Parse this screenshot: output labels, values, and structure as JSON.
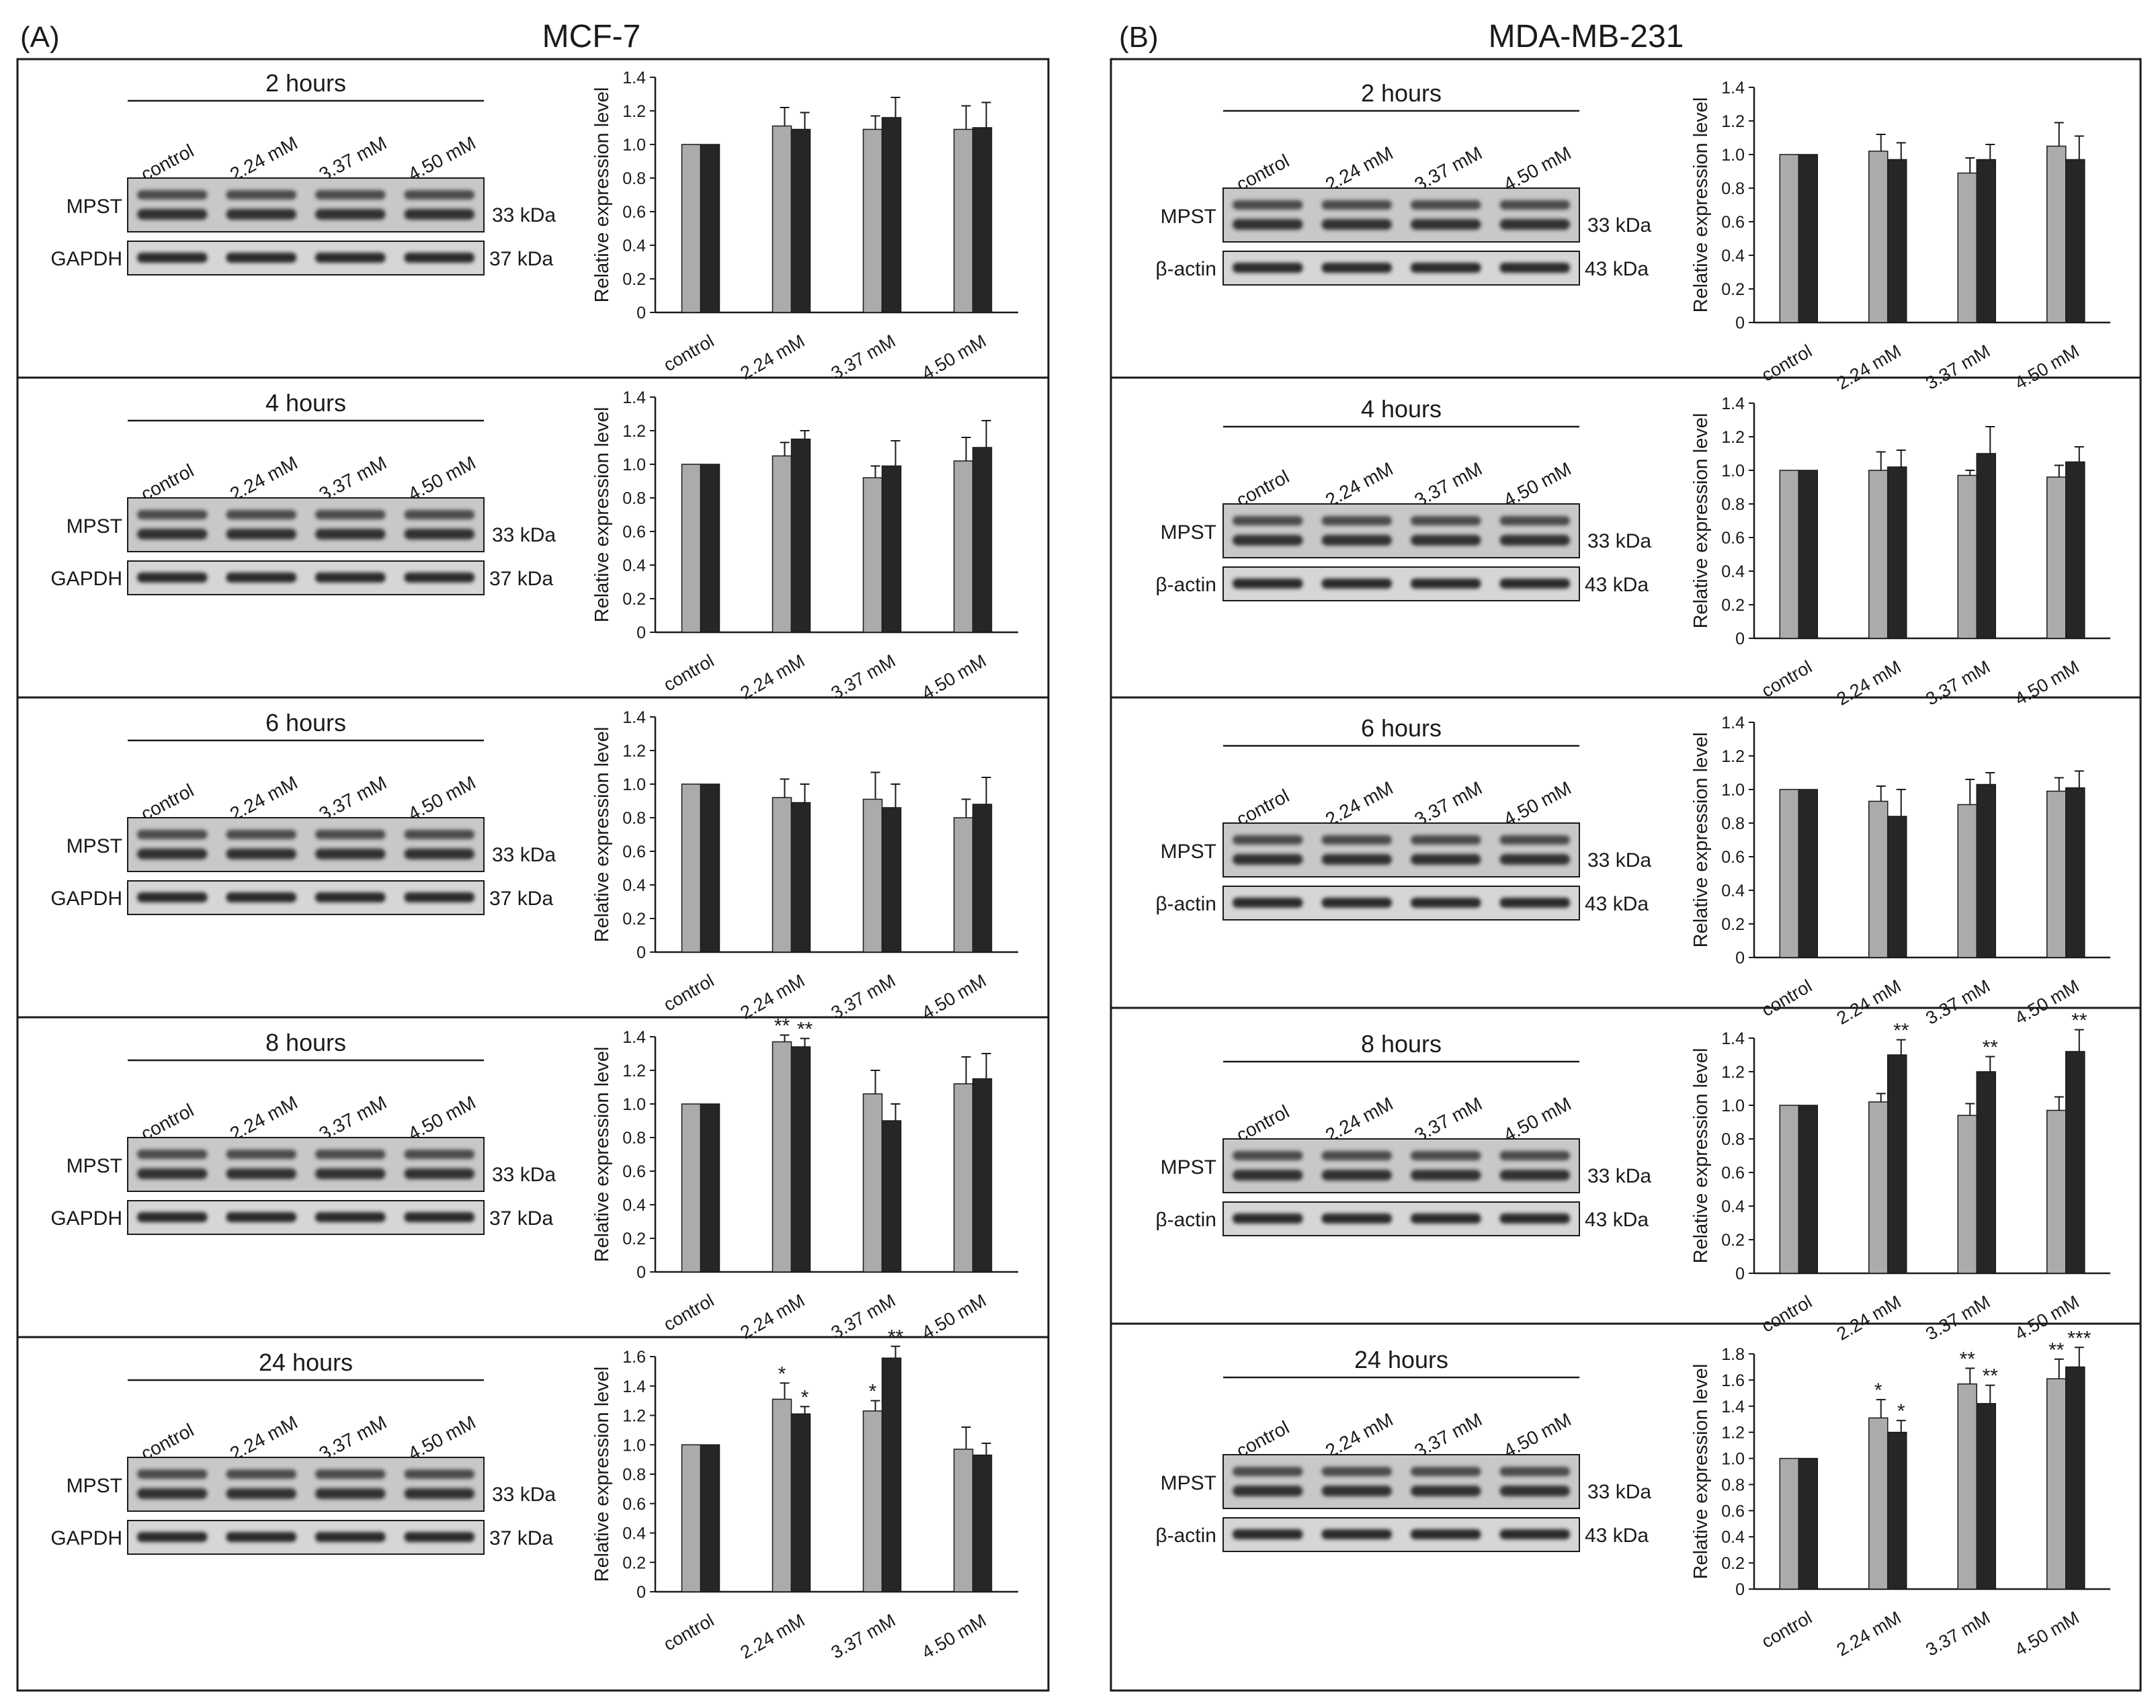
{
  "figure": {
    "panels": [
      {
        "letter": "(A)",
        "cell_line": "MCF-7",
        "loading_control": "GAPDH",
        "loading_kda": "37 kDa"
      },
      {
        "letter": "(B)",
        "cell_line": "MDA-MB-231",
        "loading_control": "β-actin",
        "loading_kda": "43 kDa"
      }
    ],
    "target_label": "MPST",
    "target_kda": "33 kDa",
    "lanes": [
      "control",
      "2.24 mM",
      "3.37 mM",
      "4.50 mM"
    ]
  },
  "colors": {
    "gray_bar": "#ababab",
    "dark_bar": "#262626",
    "frame": "#1a1a1a",
    "blot_bg": "#c8c8c8",
    "band": "#222222"
  },
  "chart_data": [
    {
      "panel": "A",
      "title": "2 hours",
      "type": "bar",
      "categories": [
        "control",
        "2.24 mM",
        "3.37 mM",
        "4.50 mM"
      ],
      "ylabel": "Relative expression level",
      "ylim": [
        0,
        1.4
      ],
      "yticks": [
        "0",
        "0.2",
        "0.4",
        "0.6",
        "0.8",
        "1.0",
        "1.2",
        "1.4"
      ],
      "series": [
        {
          "name": "gray",
          "values": [
            1.0,
            1.11,
            1.09,
            1.09
          ],
          "errors": [
            0,
            0.11,
            0.08,
            0.14
          ],
          "labels": [
            "",
            "",
            "",
            ""
          ]
        },
        {
          "name": "black",
          "values": [
            1.0,
            1.09,
            1.16,
            1.1
          ],
          "errors": [
            0,
            0.1,
            0.12,
            0.15
          ],
          "labels": [
            "",
            "",
            "",
            ""
          ]
        }
      ]
    },
    {
      "panel": "A",
      "title": "4 hours",
      "type": "bar",
      "categories": [
        "control",
        "2.24 mM",
        "3.37 mM",
        "4.50 mM"
      ],
      "ylabel": "Relative expression level",
      "ylim": [
        0,
        1.4
      ],
      "yticks": [
        "0",
        "0.2",
        "0.4",
        "0.6",
        "0.8",
        "1.0",
        "1.2",
        "1.4"
      ],
      "series": [
        {
          "name": "gray",
          "values": [
            1.0,
            1.05,
            0.92,
            1.02
          ],
          "errors": [
            0,
            0.08,
            0.07,
            0.14
          ],
          "labels": [
            "",
            "",
            "",
            ""
          ]
        },
        {
          "name": "black",
          "values": [
            1.0,
            1.15,
            0.99,
            1.1
          ],
          "errors": [
            0,
            0.05,
            0.15,
            0.16
          ],
          "labels": [
            "",
            "",
            "",
            ""
          ]
        }
      ]
    },
    {
      "panel": "A",
      "title": "6 hours",
      "type": "bar",
      "categories": [
        "control",
        "2.24 mM",
        "3.37 mM",
        "4.50 mM"
      ],
      "ylabel": "Relative expression level",
      "ylim": [
        0,
        1.4
      ],
      "yticks": [
        "0",
        "0.2",
        "0.4",
        "0.6",
        "0.8",
        "1.0",
        "1.2",
        "1.4"
      ],
      "series": [
        {
          "name": "gray",
          "values": [
            1.0,
            0.92,
            0.91,
            0.8
          ],
          "errors": [
            0,
            0.11,
            0.16,
            0.11
          ],
          "labels": [
            "",
            "",
            "",
            ""
          ]
        },
        {
          "name": "black",
          "values": [
            1.0,
            0.89,
            0.86,
            0.88
          ],
          "errors": [
            0,
            0.11,
            0.14,
            0.16
          ],
          "labels": [
            "",
            "",
            "",
            ""
          ]
        }
      ]
    },
    {
      "panel": "A",
      "title": "8 hours",
      "type": "bar",
      "categories": [
        "control",
        "2.24 mM",
        "3.37 mM",
        "4.50 mM"
      ],
      "ylabel": "Relative expression level",
      "ylim": [
        0,
        1.4
      ],
      "yticks": [
        "0",
        "0.2",
        "0.4",
        "0.6",
        "0.8",
        "1.0",
        "1.2",
        "1.4"
      ],
      "series": [
        {
          "name": "gray",
          "values": [
            1.0,
            1.37,
            1.06,
            1.12
          ],
          "errors": [
            0,
            0.04,
            0.14,
            0.16
          ],
          "labels": [
            "",
            "**",
            "",
            ""
          ]
        },
        {
          "name": "black",
          "values": [
            1.0,
            1.34,
            0.9,
            1.15
          ],
          "errors": [
            0,
            0.05,
            0.1,
            0.15
          ],
          "labels": [
            "",
            "**",
            "",
            ""
          ]
        }
      ]
    },
    {
      "panel": "A",
      "title": "24 hours",
      "type": "bar",
      "categories": [
        "control",
        "2.24 mM",
        "3.37 mM",
        "4.50 mM"
      ],
      "ylabel": "Relative expression level",
      "ylim": [
        0,
        1.6
      ],
      "yticks": [
        "0",
        "0.2",
        "0.4",
        "0.6",
        "0.8",
        "1.0",
        "1.2",
        "1.4",
        "1.6"
      ],
      "series": [
        {
          "name": "gray",
          "values": [
            1.0,
            1.31,
            1.23,
            0.97
          ],
          "errors": [
            0,
            0.11,
            0.07,
            0.15
          ],
          "labels": [
            "",
            "*",
            "*",
            ""
          ]
        },
        {
          "name": "black",
          "values": [
            1.0,
            1.21,
            1.59,
            0.93
          ],
          "errors": [
            0,
            0.05,
            0.08,
            0.08
          ],
          "labels": [
            "",
            "*",
            "**",
            ""
          ]
        }
      ]
    },
    {
      "panel": "B",
      "title": "2 hours",
      "type": "bar",
      "categories": [
        "control",
        "2.24 mM",
        "3.37 mM",
        "4.50 mM"
      ],
      "ylabel": "Relative expression level",
      "ylim": [
        0,
        1.4
      ],
      "yticks": [
        "0",
        "0.2",
        "0.4",
        "0.6",
        "0.8",
        "1.0",
        "1.2",
        "1.4"
      ],
      "series": [
        {
          "name": "gray",
          "values": [
            1.0,
            1.02,
            0.89,
            1.05
          ],
          "errors": [
            0,
            0.1,
            0.09,
            0.14
          ],
          "labels": [
            "",
            "",
            "",
            ""
          ]
        },
        {
          "name": "black",
          "values": [
            1.0,
            0.97,
            0.97,
            0.97
          ],
          "errors": [
            0,
            0.1,
            0.09,
            0.14
          ],
          "labels": [
            "",
            "",
            "",
            ""
          ]
        }
      ]
    },
    {
      "panel": "B",
      "title": "4 hours",
      "type": "bar",
      "categories": [
        "control",
        "2.24 mM",
        "3.37 mM",
        "4.50 mM"
      ],
      "ylabel": "Relative expression level",
      "ylim": [
        0,
        1.4
      ],
      "yticks": [
        "0",
        "0.2",
        "0.4",
        "0.6",
        "0.8",
        "1.0",
        "1.2",
        "1.4"
      ],
      "series": [
        {
          "name": "gray",
          "values": [
            1.0,
            1.0,
            0.97,
            0.96
          ],
          "errors": [
            0,
            0.11,
            0.03,
            0.07
          ],
          "labels": [
            "",
            "",
            "",
            ""
          ]
        },
        {
          "name": "black",
          "values": [
            1.0,
            1.02,
            1.1,
            1.05
          ],
          "errors": [
            0,
            0.1,
            0.16,
            0.09
          ],
          "labels": [
            "",
            "",
            "",
            ""
          ]
        }
      ]
    },
    {
      "panel": "B",
      "title": "6 hours",
      "type": "bar",
      "categories": [
        "control",
        "2.24 mM",
        "3.37 mM",
        "4.50 mM"
      ],
      "ylabel": "Relative expression level",
      "ylim": [
        0,
        1.4
      ],
      "yticks": [
        "0",
        "0.2",
        "0.4",
        "0.6",
        "0.8",
        "1.0",
        "1.2",
        "1.4"
      ],
      "series": [
        {
          "name": "gray",
          "values": [
            1.0,
            0.93,
            0.91,
            0.99
          ],
          "errors": [
            0,
            0.09,
            0.15,
            0.08
          ],
          "labels": [
            "",
            "",
            "",
            ""
          ]
        },
        {
          "name": "black",
          "values": [
            1.0,
            0.84,
            1.03,
            1.01
          ],
          "errors": [
            0,
            0.16,
            0.07,
            0.1
          ],
          "labels": [
            "",
            "",
            "",
            ""
          ]
        }
      ]
    },
    {
      "panel": "B",
      "title": "8 hours",
      "type": "bar",
      "categories": [
        "control",
        "2.24 mM",
        "3.37 mM",
        "4.50 mM"
      ],
      "ylabel": "Relative expression level",
      "ylim": [
        0,
        1.4
      ],
      "yticks": [
        "0",
        "0.2",
        "0.4",
        "0.6",
        "0.8",
        "1.0",
        "1.2",
        "1.4"
      ],
      "series": [
        {
          "name": "gray",
          "values": [
            1.0,
            1.02,
            0.94,
            0.97
          ],
          "errors": [
            0,
            0.05,
            0.07,
            0.08
          ],
          "labels": [
            "",
            "",
            "",
            ""
          ]
        },
        {
          "name": "black",
          "values": [
            1.0,
            1.3,
            1.2,
            1.32
          ],
          "errors": [
            0,
            0.09,
            0.09,
            0.13
          ],
          "labels": [
            "",
            "**",
            "**",
            "**"
          ]
        }
      ]
    },
    {
      "panel": "B",
      "title": "24 hours",
      "type": "bar",
      "categories": [
        "control",
        "2.24 mM",
        "3.37 mM",
        "4.50 mM"
      ],
      "ylabel": "Relative expression level",
      "ylim": [
        0,
        1.8
      ],
      "yticks": [
        "0",
        "0.2",
        "0.4",
        "0.6",
        "0.8",
        "1.0",
        "1.2",
        "1.4",
        "1.6",
        "1.8"
      ],
      "series": [
        {
          "name": "gray",
          "values": [
            1.0,
            1.31,
            1.57,
            1.61
          ],
          "errors": [
            0,
            0.14,
            0.12,
            0.15
          ],
          "labels": [
            "",
            "*",
            "**",
            "**"
          ]
        },
        {
          "name": "black",
          "values": [
            1.0,
            1.2,
            1.42,
            1.7
          ],
          "errors": [
            0,
            0.09,
            0.14,
            0.15
          ],
          "labels": [
            "",
            "*",
            "**",
            "***"
          ]
        }
      ]
    }
  ]
}
